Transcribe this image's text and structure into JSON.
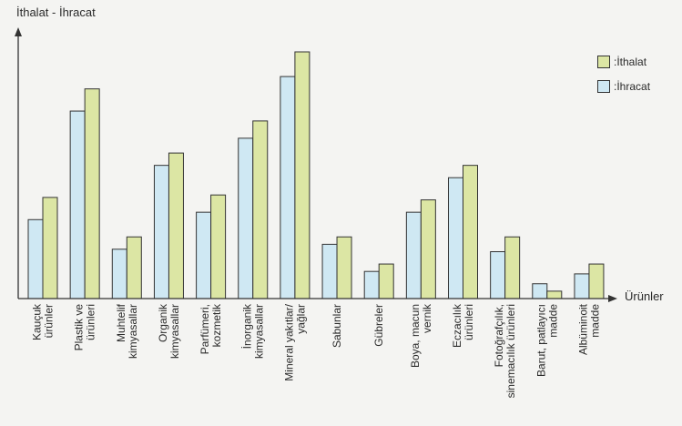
{
  "chart_data": {
    "type": "bar",
    "ylabel": "İthalat - İhracat",
    "xlabel": "Ürünler",
    "ylim": [
      0,
      100
    ],
    "categories": [
      [
        "Kauçuk",
        "ürünler"
      ],
      [
        "Plastik ve",
        "ürünleri"
      ],
      [
        "Muhtelif",
        "kimyasallar"
      ],
      [
        "Organik",
        "kimyasallar"
      ],
      [
        "Parfümeri,",
        "kozmetik"
      ],
      [
        "İnorganik",
        "kimyasallar"
      ],
      [
        "Mineral yakıtlar/",
        "yağlar"
      ],
      [
        "Sabunlar"
      ],
      [
        "Gübreler"
      ],
      [
        "Boya, macun",
        "vernik"
      ],
      [
        "Eczacılık",
        "ürünleri"
      ],
      [
        "Fotoğrafçılık,",
        "sinemacılık ürünleri"
      ],
      [
        "Barut, patlayıcı",
        "madde"
      ],
      [
        "Albüminoit",
        "madde"
      ]
    ],
    "series": [
      {
        "name": "İhracat",
        "color": "#cfe8f3",
        "values": [
          32,
          76,
          20,
          54,
          35,
          65,
          90,
          22,
          11,
          35,
          49,
          19,
          6,
          10
        ]
      },
      {
        "name": "İthalat",
        "color": "#dce6a4",
        "values": [
          41,
          85,
          25,
          59,
          42,
          72,
          100,
          25,
          14,
          40,
          54,
          25,
          3,
          14
        ]
      }
    ],
    "legend": [
      "İthalat",
      "İhracat"
    ],
    "legend_position": "top-right",
    "legend_prefix": ": ",
    "grid": false
  }
}
